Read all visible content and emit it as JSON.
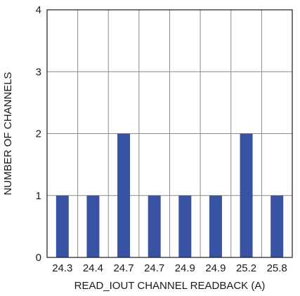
{
  "chart_data": {
    "type": "bar",
    "categories": [
      "24.3",
      "24.4",
      "24.7",
      "24.7",
      "24.9",
      "24.9",
      "25.2",
      "25.8"
    ],
    "values": [
      1,
      1,
      2,
      1,
      1,
      1,
      2,
      1
    ],
    "title": "",
    "xlabel": "READ_IOUT CHANNEL READBACK (A)",
    "ylabel": "NUMBER OF CHANNELS",
    "ylim": [
      0,
      4
    ],
    "yticks": [
      "0",
      "1",
      "2",
      "3",
      "4"
    ],
    "grid": true,
    "bar_color": "#3953a4"
  }
}
